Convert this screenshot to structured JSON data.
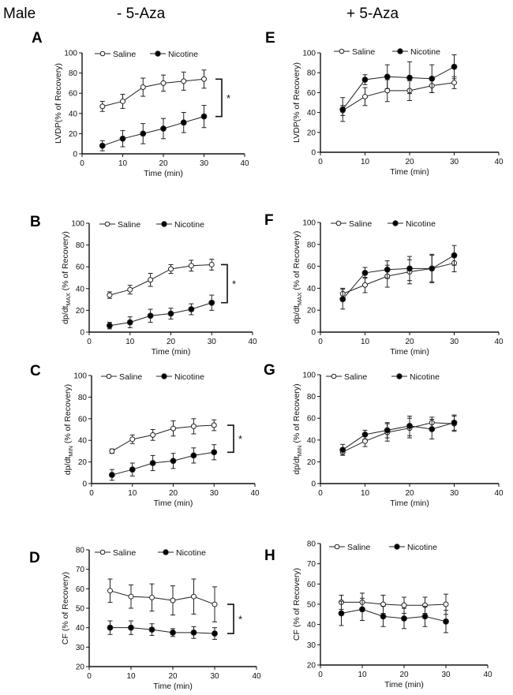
{
  "figure": {
    "sex_label": "Male",
    "column_titles": [
      "- 5-Aza",
      "+ 5-Aza"
    ]
  },
  "colors": {
    "axis": "#111111",
    "saline_fill": "#ffffff",
    "nicotine_fill": "#000000",
    "line": "#222222"
  },
  "chart_data": [
    {
      "id": "A",
      "panel_letter": "A",
      "type": "line",
      "column": "- 5-Aza",
      "xlabel": "Time (min)",
      "ylabel": "LVDP(% of Recovery)",
      "ylabel_sub": "",
      "xlim": [
        0,
        40
      ],
      "xticks": [
        0,
        10,
        20,
        30,
        40
      ],
      "ylim": [
        0,
        100
      ],
      "yticks": [
        0,
        20,
        40,
        60,
        80,
        100
      ],
      "legend": [
        "Saline",
        "Nicotine"
      ],
      "legend_position": "top",
      "significance": "*",
      "x": [
        5,
        10,
        15,
        20,
        25,
        30
      ],
      "series": [
        {
          "name": "Saline",
          "marker": "open-circle",
          "values": [
            47,
            52,
            66,
            70,
            72,
            74
          ],
          "errors": [
            5,
            7,
            9,
            8,
            9,
            9
          ]
        },
        {
          "name": "Nicotine",
          "marker": "filled-circle",
          "values": [
            8,
            15,
            20,
            25,
            31,
            37
          ],
          "errors": [
            5,
            8,
            10,
            10,
            10,
            11
          ]
        }
      ]
    },
    {
      "id": "E",
      "panel_letter": "E",
      "type": "line",
      "column": "+ 5-Aza",
      "xlabel": "Time (min)",
      "ylabel": "LVDP(% of Recovery)",
      "ylabel_sub": "",
      "xlim": [
        0,
        40
      ],
      "xticks": [
        0,
        10,
        20,
        30,
        40
      ],
      "ylim": [
        0,
        100
      ],
      "yticks": [
        0,
        20,
        40,
        60,
        80,
        100
      ],
      "legend": [
        "Saline",
        "Nicotine"
      ],
      "legend_position": "top",
      "significance": "",
      "x": [
        5,
        10,
        15,
        20,
        25,
        30
      ],
      "series": [
        {
          "name": "Saline",
          "marker": "open-circle",
          "values": [
            42,
            56,
            62,
            62,
            67,
            70
          ],
          "errors": [
            5,
            9,
            11,
            10,
            7,
            6
          ]
        },
        {
          "name": "Nicotine",
          "marker": "filled-circle",
          "values": [
            43,
            73,
            76,
            75,
            74,
            86
          ],
          "errors": [
            12,
            5,
            12,
            16,
            14,
            12
          ]
        }
      ]
    },
    {
      "id": "B",
      "panel_letter": "B",
      "type": "line",
      "column": "- 5-Aza",
      "xlabel": "Time (min)",
      "ylabel": "dp/dt",
      "ylabel_sub": "MAX",
      "ylabel_suffix": " (% of Recovery)",
      "xlim": [
        0,
        40
      ],
      "xticks": [
        0,
        10,
        20,
        30,
        40
      ],
      "ylim": [
        0,
        100
      ],
      "yticks": [
        0,
        20,
        40,
        60,
        80,
        100
      ],
      "legend": [
        "Saline",
        "Nicotine"
      ],
      "legend_position": "top",
      "significance": "*",
      "x": [
        5,
        10,
        15,
        20,
        25,
        30
      ],
      "series": [
        {
          "name": "Saline",
          "marker": "open-circle",
          "values": [
            34,
            39,
            48,
            58,
            61,
            62
          ],
          "errors": [
            3,
            4,
            6,
            4,
            5,
            5
          ]
        },
        {
          "name": "Nicotine",
          "marker": "filled-circle",
          "values": [
            6,
            9,
            15,
            17,
            21,
            27
          ],
          "errors": [
            3,
            5,
            6,
            5,
            5,
            7
          ]
        }
      ]
    },
    {
      "id": "F",
      "panel_letter": "F",
      "type": "line",
      "column": "+ 5-Aza",
      "xlabel": "Time (min)",
      "ylabel": "dp/dt",
      "ylabel_sub": "MAX",
      "ylabel_suffix": " (% of Recovery)",
      "xlim": [
        0,
        40
      ],
      "xticks": [
        0,
        10,
        20,
        30,
        40
      ],
      "ylim": [
        0,
        100
      ],
      "yticks": [
        0,
        20,
        40,
        60,
        80,
        100
      ],
      "legend": [
        "Saline",
        "Nicotine"
      ],
      "legend_position": "top",
      "significance": "",
      "x": [
        5,
        10,
        15,
        20,
        25,
        30
      ],
      "series": [
        {
          "name": "Saline",
          "marker": "open-circle",
          "values": [
            35,
            43,
            51,
            55,
            58,
            63
          ],
          "errors": [
            5,
            7,
            10,
            11,
            13,
            8
          ]
        },
        {
          "name": "Nicotine",
          "marker": "filled-circle",
          "values": [
            30,
            54,
            57,
            58,
            58,
            70
          ],
          "errors": [
            9,
            5,
            8,
            11,
            12,
            9
          ]
        }
      ]
    },
    {
      "id": "C",
      "panel_letter": "C",
      "type": "line",
      "column": "- 5-Aza",
      "xlabel": "Time (min)",
      "ylabel": "dp/dt",
      "ylabel_sub": "MIN",
      "ylabel_suffix": " (% of Recovery)",
      "xlim": [
        0,
        40
      ],
      "xticks": [
        0,
        10,
        20,
        30,
        40
      ],
      "ylim": [
        0,
        100
      ],
      "yticks": [
        0,
        20,
        40,
        60,
        80,
        100
      ],
      "legend": [
        "Saline",
        "Nicotine"
      ],
      "legend_position": "top",
      "significance": "*",
      "x": [
        5,
        10,
        15,
        20,
        25,
        30
      ],
      "series": [
        {
          "name": "Saline",
          "marker": "open-circle",
          "values": [
            30,
            41,
            45,
            51,
            53,
            54
          ],
          "errors": [
            2,
            4,
            5,
            7,
            7,
            5
          ]
        },
        {
          "name": "Nicotine",
          "marker": "filled-circle",
          "values": [
            8,
            13,
            19,
            21,
            26,
            29
          ],
          "errors": [
            5,
            6,
            7,
            7,
            7,
            7
          ]
        }
      ]
    },
    {
      "id": "G",
      "panel_letter": "G",
      "type": "line",
      "column": "+ 5-Aza",
      "xlabel": "Time (min)",
      "ylabel": "dp/dt",
      "ylabel_sub": "MIN",
      "ylabel_suffix": " (% of Recovery)",
      "xlim": [
        0,
        40
      ],
      "xticks": [
        0,
        10,
        20,
        30,
        40
      ],
      "ylim": [
        0,
        100
      ],
      "yticks": [
        0,
        20,
        40,
        60,
        80,
        100
      ],
      "legend": [
        "Saline",
        "Nicotine"
      ],
      "legend_position": "top",
      "significance": "",
      "x": [
        5,
        10,
        15,
        20,
        25,
        30
      ],
      "series": [
        {
          "name": "Saline",
          "marker": "open-circle",
          "values": [
            29,
            39,
            47,
            51,
            56,
            55
          ],
          "errors": [
            3,
            5,
            8,
            9,
            5,
            7
          ]
        },
        {
          "name": "Nicotine",
          "marker": "filled-circle",
          "values": [
            31,
            45,
            49,
            53,
            50,
            56
          ],
          "errors": [
            5,
            4,
            7,
            9,
            9,
            7
          ]
        }
      ]
    },
    {
      "id": "D",
      "panel_letter": "D",
      "type": "line",
      "column": "- 5-Aza",
      "xlabel": "Time (min)",
      "ylabel": "CF  (% of Recovery)",
      "ylabel_sub": "",
      "xlim": [
        0,
        40
      ],
      "xticks": [
        0,
        10,
        20,
        30,
        40
      ],
      "ylim": [
        20,
        80
      ],
      "yticks": [
        20,
        30,
        40,
        50,
        60,
        70,
        80
      ],
      "legend": [
        "Saline",
        "Nicotine"
      ],
      "legend_position": "top",
      "significance": "*",
      "x": [
        5,
        10,
        15,
        20,
        25,
        30
      ],
      "series": [
        {
          "name": "Saline",
          "marker": "open-circle",
          "values": [
            59,
            56,
            55.5,
            54,
            56,
            52
          ],
          "errors": [
            6,
            6,
            7,
            7.5,
            9,
            9
          ]
        },
        {
          "name": "Nicotine",
          "marker": "filled-circle",
          "values": [
            40,
            40,
            39,
            37.5,
            37.5,
            37
          ],
          "errors": [
            3.5,
            3.5,
            3,
            2,
            3,
            3
          ]
        }
      ]
    },
    {
      "id": "H",
      "panel_letter": "H",
      "type": "line",
      "column": "+ 5-Aza",
      "xlabel": "Time (min)",
      "ylabel": "CF  (% of Recovery)",
      "ylabel_sub": "",
      "xlim": [
        0,
        40
      ],
      "xticks": [
        0,
        10,
        20,
        30,
        40
      ],
      "ylim": [
        20,
        80
      ],
      "yticks": [
        20,
        30,
        40,
        50,
        60,
        70,
        80
      ],
      "legend": [
        "Saline",
        "Nicotine"
      ],
      "legend_position": "top",
      "significance": "",
      "x": [
        5,
        10,
        15,
        20,
        25,
        30
      ],
      "series": [
        {
          "name": "Saline",
          "marker": "open-circle",
          "values": [
            51,
            51,
            50,
            49.5,
            49.5,
            50
          ],
          "errors": [
            3.5,
            4.5,
            4.5,
            4,
            4,
            5
          ]
        },
        {
          "name": "Nicotine",
          "marker": "filled-circle",
          "values": [
            45.5,
            47.5,
            44,
            43,
            44,
            41.5
          ],
          "errors": [
            6,
            5.5,
            5,
            5,
            5,
            5.5
          ]
        }
      ]
    }
  ]
}
